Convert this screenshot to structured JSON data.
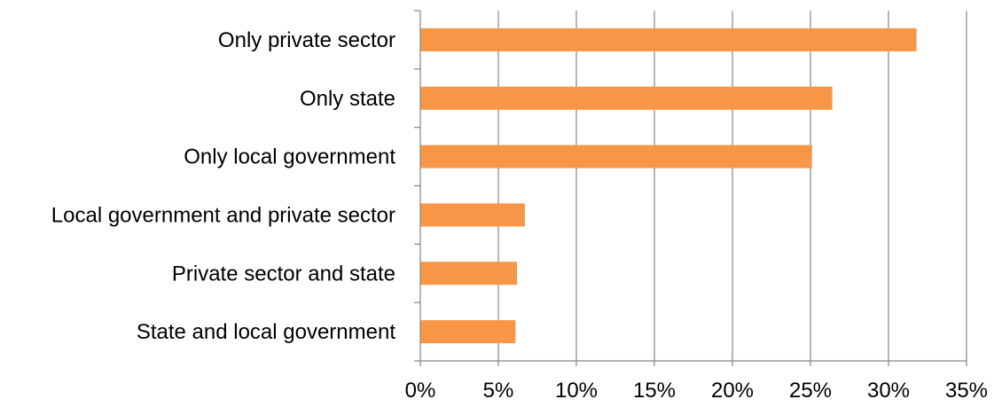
{
  "chart_data": {
    "type": "bar",
    "orientation": "horizontal",
    "categories": [
      "Only private sector",
      "Only state",
      "Only local government",
      "Local government and private sector",
      "Private sector and state",
      "State and local government"
    ],
    "values": [
      31.8,
      26.4,
      25.1,
      6.7,
      6.2,
      6.1
    ],
    "xlim": [
      0,
      35
    ],
    "x_ticks": [
      "0%",
      "5%",
      "10%",
      "15%",
      "20%",
      "25%",
      "30%",
      "35%"
    ],
    "title": "",
    "xlabel": "",
    "ylabel": "",
    "grid": "vertical",
    "legend": "none",
    "bar_color": "#F79646"
  }
}
